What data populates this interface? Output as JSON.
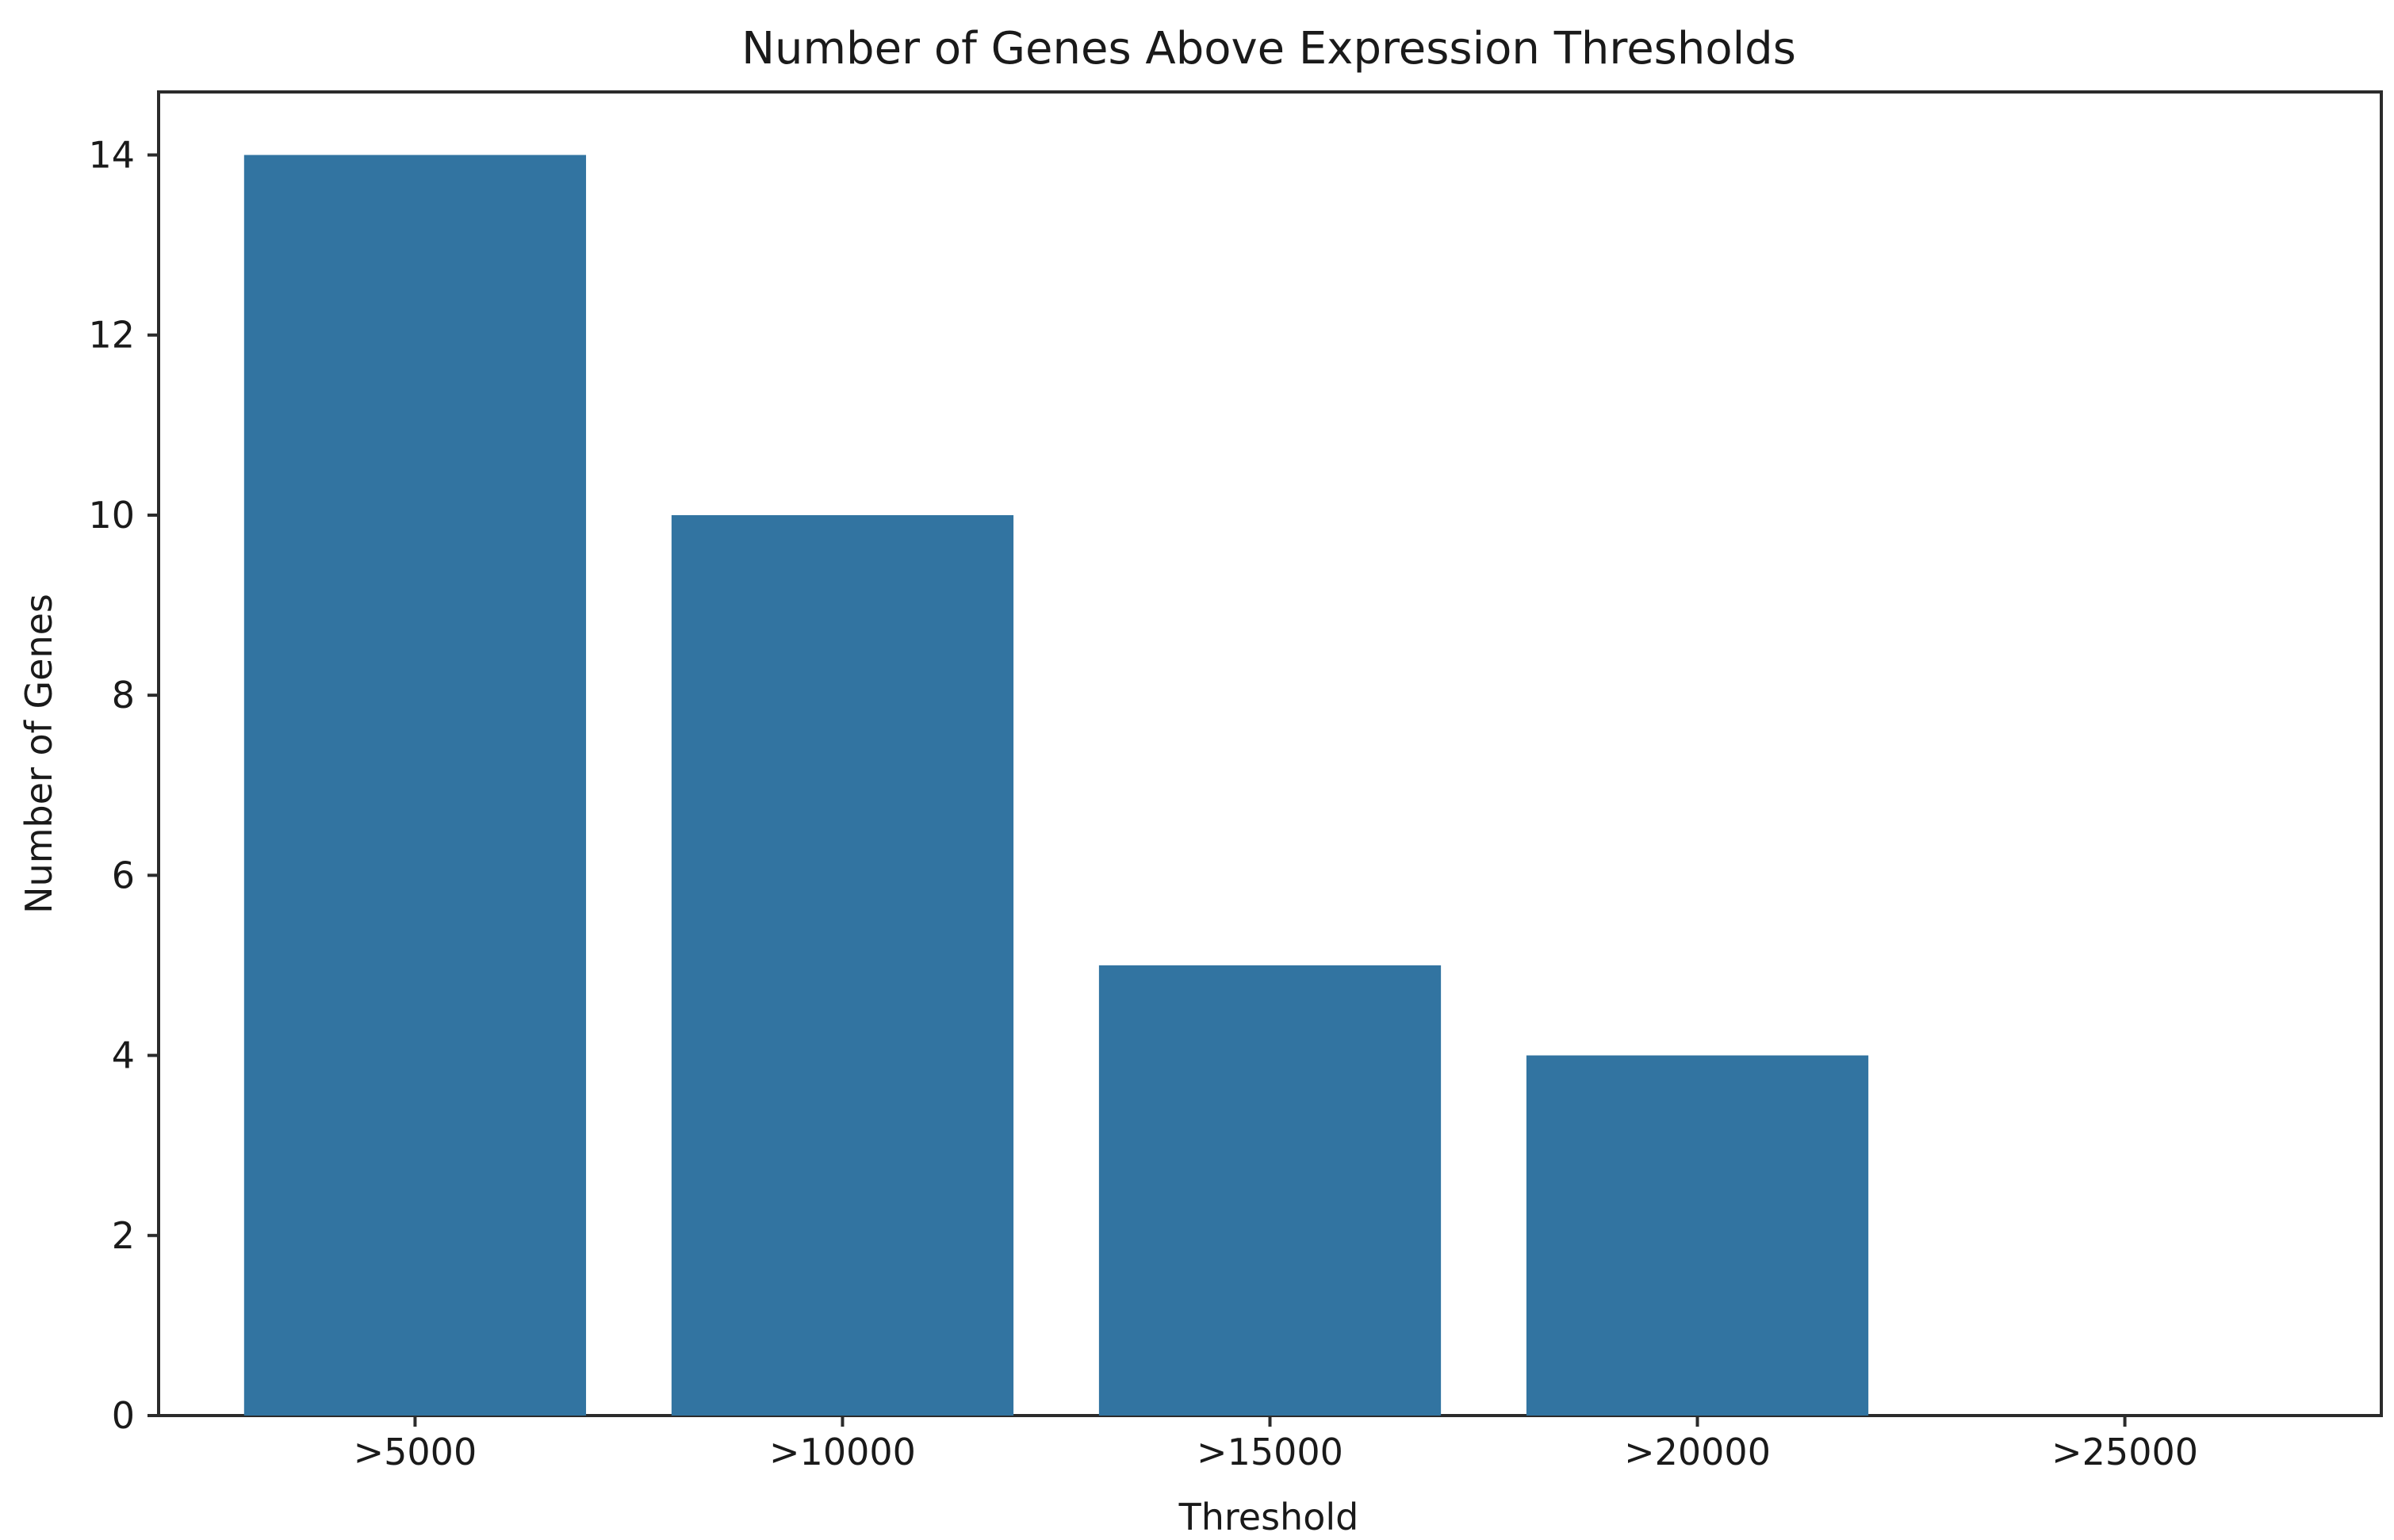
{
  "chart_data": {
    "type": "bar",
    "title": "Number of Genes Above Expression Thresholds",
    "xlabel": "Threshold",
    "ylabel": "Number of Genes",
    "categories": [
      ">5000",
      ">10000",
      ">15000",
      ">20000",
      ">25000"
    ],
    "values": [
      14,
      10,
      5,
      4,
      0
    ],
    "ylim": [
      0,
      14.7
    ],
    "yticks": [
      0,
      2,
      4,
      6,
      8,
      10,
      12,
      14
    ],
    "grid": false,
    "legend": "none",
    "bar_color": "#3274a1"
  }
}
